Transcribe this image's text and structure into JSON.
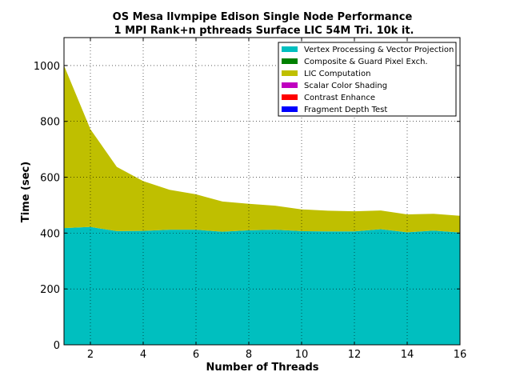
{
  "chart_data": {
    "type": "area",
    "stacked": true,
    "title": "OS Mesa llvmpipe Edison Single Node Performance",
    "subtitle": "1 MPI Rank+n pthreads Surface LIC 54M Tri. 10k it.",
    "xlabel": "Number of Threads",
    "ylabel": "Time (sec)",
    "xlim": [
      1,
      16
    ],
    "ylim": [
      0,
      1100
    ],
    "xticks": [
      2,
      4,
      6,
      8,
      10,
      12,
      14,
      16
    ],
    "yticks": [
      0,
      200,
      400,
      600,
      800,
      1000
    ],
    "grid": true,
    "legend_position": "top-right",
    "x": [
      1,
      2,
      3,
      4,
      5,
      6,
      7,
      8,
      9,
      10,
      11,
      12,
      13,
      14,
      15,
      16
    ],
    "series": [
      {
        "name": "Vertex Processing & Vector Projection",
        "color": "#00bfbf",
        "values": [
          418,
          422,
          407,
          408,
          412,
          412,
          405,
          410,
          412,
          407,
          406,
          406,
          414,
          403,
          409,
          402
        ]
      },
      {
        "name": "Composite & Guard Pixel Exch.",
        "color": "#008000",
        "values": [
          0,
          0,
          0,
          0,
          0,
          0,
          0,
          0,
          0,
          0,
          0,
          0,
          0,
          0,
          0,
          0
        ]
      },
      {
        "name": "LIC Computation",
        "color": "#bfbf00",
        "values": [
          582,
          350,
          230,
          178,
          143,
          127,
          108,
          95,
          86,
          78,
          74,
          72,
          67,
          64,
          60,
          60
        ]
      },
      {
        "name": "Scalar Color Shading",
        "color": "#bf00bf",
        "values": [
          0,
          0,
          0,
          0,
          0,
          0,
          0,
          0,
          0,
          0,
          0,
          0,
          0,
          0,
          0,
          0
        ]
      },
      {
        "name": "Contrast Enhance",
        "color": "#ff0000",
        "values": [
          0,
          0,
          0,
          0,
          0,
          0,
          0,
          0,
          0,
          0,
          0,
          0,
          0,
          0,
          0,
          0
        ]
      },
      {
        "name": "Fragment Depth Test",
        "color": "#0000ff",
        "values": [
          0,
          0,
          0,
          0,
          0,
          0,
          0,
          0,
          0,
          0,
          0,
          0,
          0,
          0,
          0,
          0
        ]
      }
    ]
  }
}
